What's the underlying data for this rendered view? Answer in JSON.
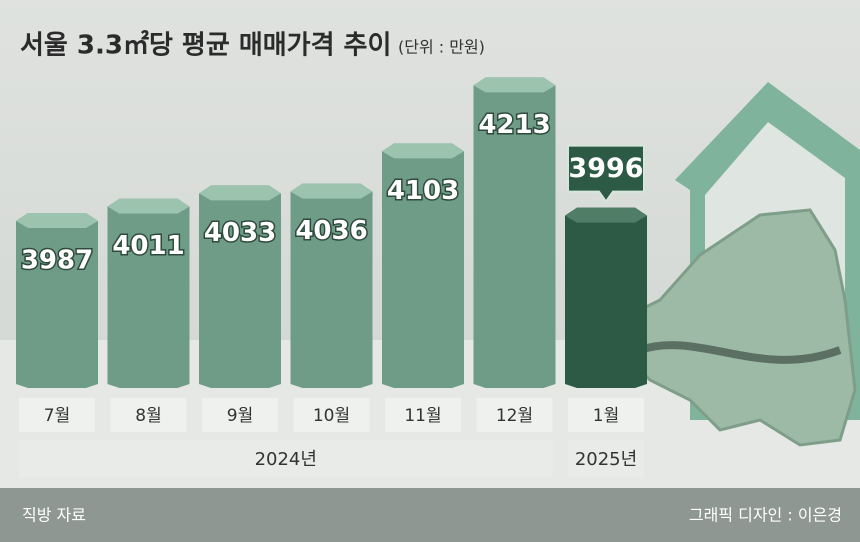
{
  "chart_data": {
    "type": "bar",
    "title": "서울 3.3㎡당 평균 매매가격 추이",
    "unit": "(단위 : 만원)",
    "groups": [
      {
        "label": "2024년",
        "color": "#6f9c86",
        "categories": [
          "7월",
          "8월",
          "9월",
          "10월",
          "11월",
          "12월"
        ],
        "values": [
          3987,
          4011,
          4033,
          4036,
          4103,
          4213
        ]
      },
      {
        "label": "2025년",
        "color": "#2c5a45",
        "categories": [
          "1월"
        ],
        "values": [
          3996
        ]
      }
    ],
    "source": "직방 자료",
    "credit": "그래픽 디자인 : 이은경"
  }
}
